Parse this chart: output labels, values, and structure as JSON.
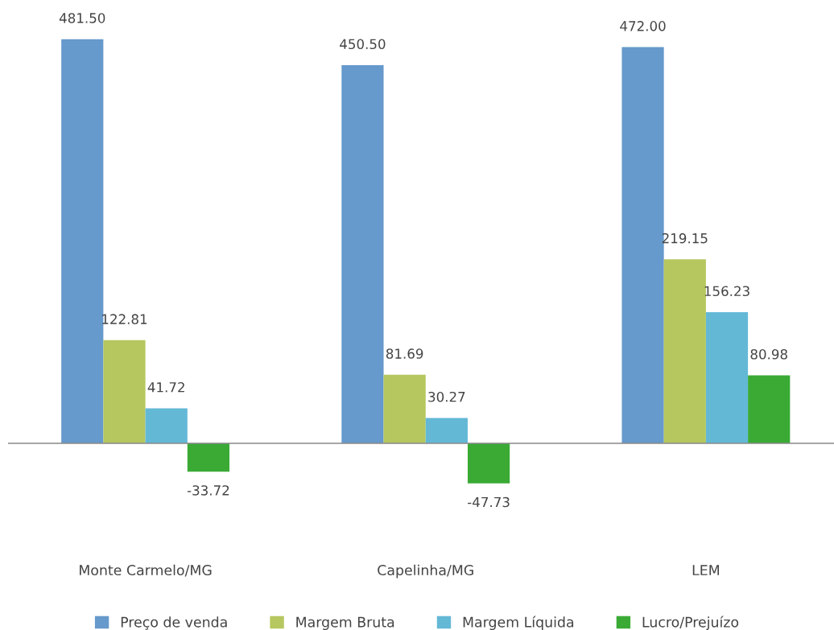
{
  "chart_data": {
    "type": "bar",
    "categories": [
      "Monte Carmelo/MG",
      "Capelinha/MG",
      "LEM"
    ],
    "series": [
      {
        "name": "Preço de venda",
        "color": "#6699cc",
        "values": [
          481.5,
          450.5,
          472.0
        ],
        "value_labels": [
          "481.50",
          "450.50",
          "472.00"
        ]
      },
      {
        "name": "Margem Bruta",
        "color": "#b5c75e",
        "values": [
          122.81,
          81.69,
          219.15
        ],
        "value_labels": [
          "122.81",
          "81.69",
          "219.15"
        ]
      },
      {
        "name": "Margem Líquida",
        "color": "#63b8d6",
        "values": [
          41.72,
          30.27,
          156.23
        ],
        "value_labels": [
          "41.72",
          "30.27",
          "156.23"
        ]
      },
      {
        "name": "Lucro/Prejuízo",
        "color": "#3aaa35",
        "values": [
          -33.72,
          -47.73,
          80.98
        ],
        "value_labels": [
          "-33.72",
          "-47.73",
          "80.98"
        ]
      }
    ],
    "legend": "bottom",
    "grid": false,
    "tick_labels": "x"
  }
}
